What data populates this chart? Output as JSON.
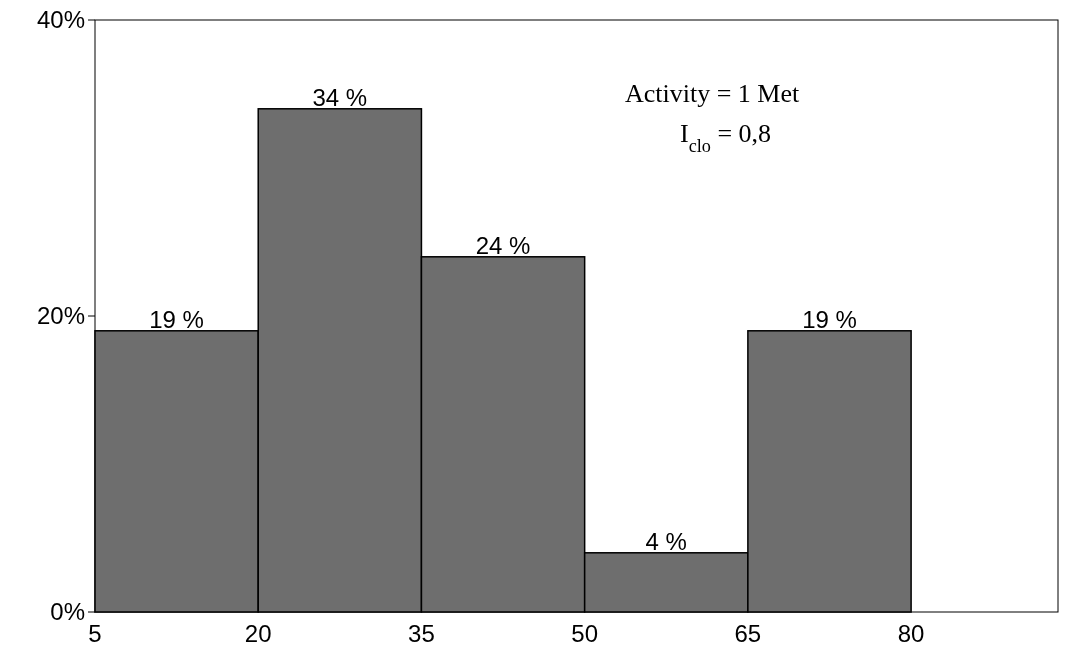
{
  "chart_data": {
    "type": "histogram",
    "bins": [
      5,
      20,
      35,
      50,
      65,
      80
    ],
    "values": [
      19,
      34,
      24,
      4,
      19
    ],
    "value_labels": [
      "19 %",
      "34 %",
      "24 %",
      "4 %",
      "19 %"
    ],
    "color": "#6e6e6e",
    "xlim": [
      5,
      93.5
    ],
    "xticks": [
      5,
      20,
      35,
      50,
      65,
      80
    ],
    "ylim": [
      0,
      40
    ],
    "yticks": [
      {
        "value": 0,
        "label": "0%"
      },
      {
        "value": 20,
        "label": "20%"
      },
      {
        "value": 40,
        "label": "40%"
      }
    ],
    "annotations": [
      "Activity = 1 Met",
      "I$_{clo}$ = 0,8"
    ]
  }
}
